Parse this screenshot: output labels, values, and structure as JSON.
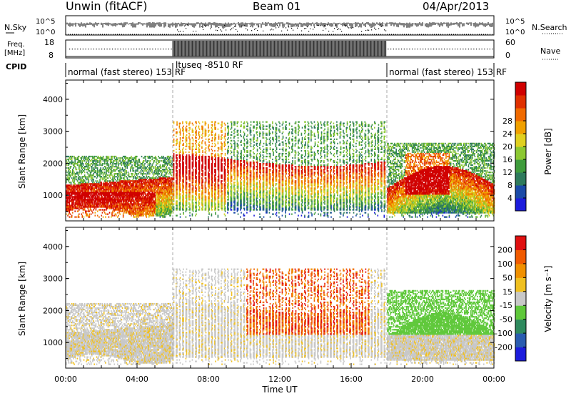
{
  "header": {
    "station": "Unwin (fitACF)",
    "beam": "Beam 01",
    "date": "04/Apr/2013"
  },
  "top_panels": {
    "noise": {
      "left_label": "N.Sky",
      "right_label": "N.Search",
      "left_ticks": [
        "10^5",
        "10^0"
      ],
      "right_ticks": [
        "10^5",
        "10^0"
      ]
    },
    "freq": {
      "left_label_line1": "Freq.",
      "left_label_line2": "[MHz]",
      "left_ticks": [
        "18",
        "8"
      ],
      "right_label": "Nave",
      "right_ticks": [
        "60",
        "0"
      ]
    },
    "cpid": {
      "label": "CPID",
      "segments": [
        {
          "text": "normal (fast stereo) 153 RF",
          "start_hour": 0,
          "end_hour": 6
        },
        {
          "text": "ltuseq -8510 RF",
          "start_hour": 6,
          "end_hour": 18
        },
        {
          "text": "normal (fast stereo) 153 RF",
          "start_hour": 18,
          "end_hour": 24
        }
      ]
    }
  },
  "chart_data": [
    {
      "type": "heatmap",
      "name": "power",
      "ylabel": "Slant Range [km]",
      "xlabel": "",
      "ylim": [
        200,
        4600
      ],
      "yticks": [
        "1000",
        "2000",
        "3000",
        "4000"
      ],
      "xlim_hours": [
        0,
        24
      ],
      "colorbar": {
        "label": "Power [dB]",
        "ticks": [
          "4",
          "8",
          "12",
          "16",
          "20",
          "24",
          "28"
        ],
        "range": [
          0,
          32
        ],
        "colors": [
          "#1c1cdc",
          "#1a4aa8",
          "#2e7a5c",
          "#3f9c3c",
          "#8cc832",
          "#e0d020",
          "#f0a000",
          "#f06a00",
          "#e03000",
          "#d00000"
        ]
      }
    },
    {
      "type": "heatmap",
      "name": "velocity",
      "ylabel": "Slant Range [km]",
      "xlabel": "Time UT",
      "ylim": [
        200,
        4600
      ],
      "yticks": [
        "1000",
        "2000",
        "3000",
        "4000"
      ],
      "xlim_hours": [
        0,
        24
      ],
      "xticks": [
        "00:00",
        "04:00",
        "08:00",
        "12:00",
        "16:00",
        "20:00",
        "00:00"
      ],
      "colorbar": {
        "label": "Velocity [m s⁻¹]",
        "ticks": [
          "200",
          "100",
          "50",
          "15",
          "-15",
          "-50",
          "-100",
          "-200"
        ],
        "colors": [
          "#1c1cdc",
          "#2a5cb0",
          "#2e8a5e",
          "#5fc83a",
          "#c8c8c8",
          "#f0c020",
          "#f09000",
          "#f05a00",
          "#e01010"
        ]
      }
    }
  ]
}
